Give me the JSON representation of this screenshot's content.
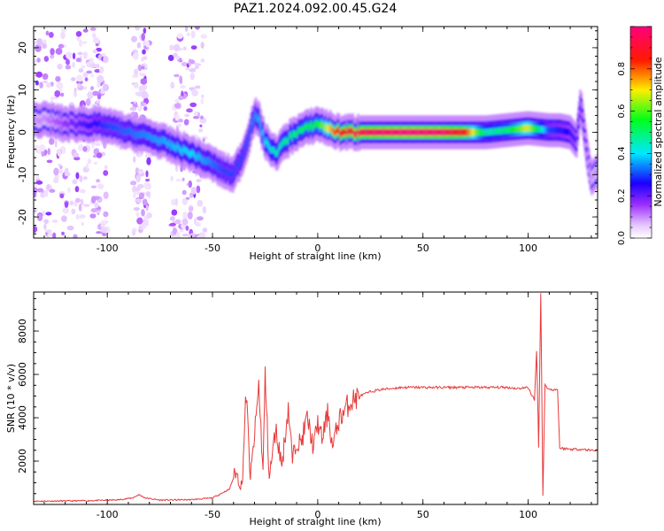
{
  "title": "PAZ1.2024.092.00.45.G24",
  "chart_data": [
    {
      "type": "heatmap",
      "xlabel": "Height of straight line (km)",
      "ylabel": "Frequency (Hz)",
      "xlim": [
        -135,
        133
      ],
      "ylim": [
        -25,
        25
      ],
      "xticks": [
        -100,
        -50,
        0,
        50,
        100
      ],
      "yticks": [
        -20,
        -10,
        0,
        10,
        20
      ],
      "colorbar": {
        "label": "Normalized spectral amplitude",
        "range": [
          0,
          1
        ],
        "ticks": [
          0.0,
          0.2,
          0.4,
          0.6,
          0.8
        ],
        "colormap": "gist_rainbow_r (violet → blue → cyan → green → yellow → red → pink)"
      },
      "ridge_frequency": {
        "x": [
          -130,
          -120,
          -110,
          -100,
          -90,
          -80,
          -70,
          -60,
          -50,
          -45,
          -40,
          -35,
          -30,
          -28,
          -25,
          -20,
          -15,
          -10,
          -5,
          0,
          5,
          10,
          20,
          40,
          60,
          80,
          100,
          110,
          115,
          120,
          123,
          125,
          128,
          130,
          133
        ],
        "y": [
          3,
          2,
          2,
          1.5,
          0,
          -1,
          -3,
          -5,
          -7.5,
          -9,
          -10,
          -5,
          4,
          3,
          -2,
          -5,
          -2,
          0,
          1,
          2,
          1,
          0,
          0,
          0,
          0,
          0,
          1,
          0.5,
          0.5,
          0,
          -2,
          7,
          -5,
          -11,
          -9
        ]
      },
      "peak_amplitude": {
        "x": [
          -130,
          -100,
          -80,
          -60,
          -45,
          -35,
          -30,
          -20,
          -10,
          0,
          5,
          10,
          20,
          30,
          40,
          50,
          60,
          70,
          80,
          90,
          100,
          110,
          120,
          125,
          130
        ],
        "value": [
          0.1,
          0.3,
          0.35,
          0.4,
          0.3,
          0.3,
          0.35,
          0.45,
          0.5,
          0.55,
          0.7,
          0.85,
          0.95,
          0.98,
          1.0,
          1.0,
          0.98,
          0.85,
          0.45,
          0.5,
          0.7,
          0.3,
          0.25,
          0.2,
          0.1
        ]
      }
    },
    {
      "type": "line",
      "xlabel": "Height of straight line (km)",
      "ylabel": "SNR (10 * v/v)",
      "xlim": [
        -135,
        133
      ],
      "ylim": [
        0,
        9800
      ],
      "xticks": [
        -100,
        -50,
        0,
        50,
        100
      ],
      "yticks": [
        2000,
        4000,
        6000,
        8000
      ],
      "series": [
        {
          "color": "#e83a3a",
          "x": [
            -135,
            -110,
            -95,
            -88,
            -85,
            -82,
            -75,
            -60,
            -50,
            -46,
            -42,
            -39,
            -36,
            -34,
            -32,
            -30,
            -28,
            -26,
            -25,
            -23,
            -20,
            -17,
            -14,
            -12,
            -10,
            -8,
            -5,
            -2,
            0,
            2,
            5,
            7,
            10,
            12,
            15,
            18,
            20,
            25,
            30,
            35,
            40,
            50,
            60,
            70,
            80,
            90,
            95,
            100,
            103,
            104,
            105,
            106,
            107,
            108,
            110,
            113,
            114,
            115,
            120,
            125,
            130,
            133
          ],
          "y": [
            150,
            170,
            210,
            300,
            450,
            300,
            200,
            220,
            300,
            500,
            700,
            1500,
            800,
            5200,
            1200,
            3200,
            5500,
            1500,
            6000,
            1200,
            3500,
            1800,
            4500,
            2000,
            3000,
            2800,
            4000,
            2600,
            3800,
            3000,
            4300,
            2600,
            3900,
            4200,
            4700,
            4900,
            5000,
            5200,
            5300,
            5350,
            5400,
            5400,
            5400,
            5400,
            5400,
            5400,
            5350,
            5400,
            4800,
            7100,
            2600,
            9800,
            400,
            5500,
            5300,
            5300,
            5300,
            2600,
            2550,
            2550,
            2500,
            2500
          ]
        }
      ]
    }
  ]
}
